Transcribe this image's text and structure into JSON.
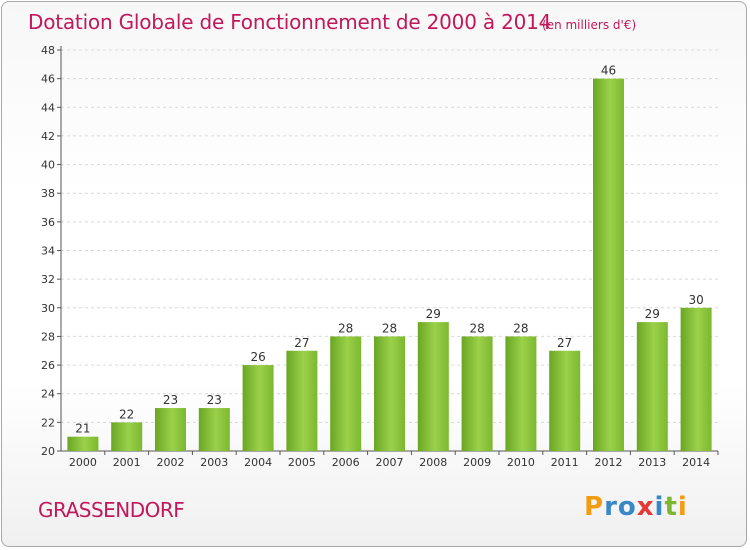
{
  "chart_data": {
    "type": "bar",
    "title": "Dotation Globale de Fonctionnement de 2000 à 2014",
    "subtitle": "(en milliers d'€)",
    "xlabel": "",
    "ylabel": "",
    "categories": [
      "2000",
      "2001",
      "2002",
      "2003",
      "2004",
      "2005",
      "2006",
      "2007",
      "2008",
      "2009",
      "2010",
      "2011",
      "2012",
      "2013",
      "2014"
    ],
    "values": [
      21,
      22,
      23,
      23,
      26,
      27,
      28,
      28,
      29,
      28,
      28,
      27,
      46,
      29,
      30
    ],
    "ylim": [
      20,
      48
    ],
    "ytick_step": 2,
    "grid": true,
    "bar_color": "#7cb82f",
    "bar_color_light": "#a6d85a"
  },
  "footer": {
    "location": "GRASSENDORF",
    "logo_letters": [
      "P",
      "r",
      "o",
      "x",
      "i",
      "t",
      "i"
    ],
    "logo_colors": [
      "#f39c12",
      "#3a87c8",
      "#3a87c8",
      "#e53935",
      "#3a87c8",
      "#7cb82f",
      "#f39c12"
    ]
  },
  "colors": {
    "title": "#c2185b",
    "grid": "#d9d9d9"
  }
}
